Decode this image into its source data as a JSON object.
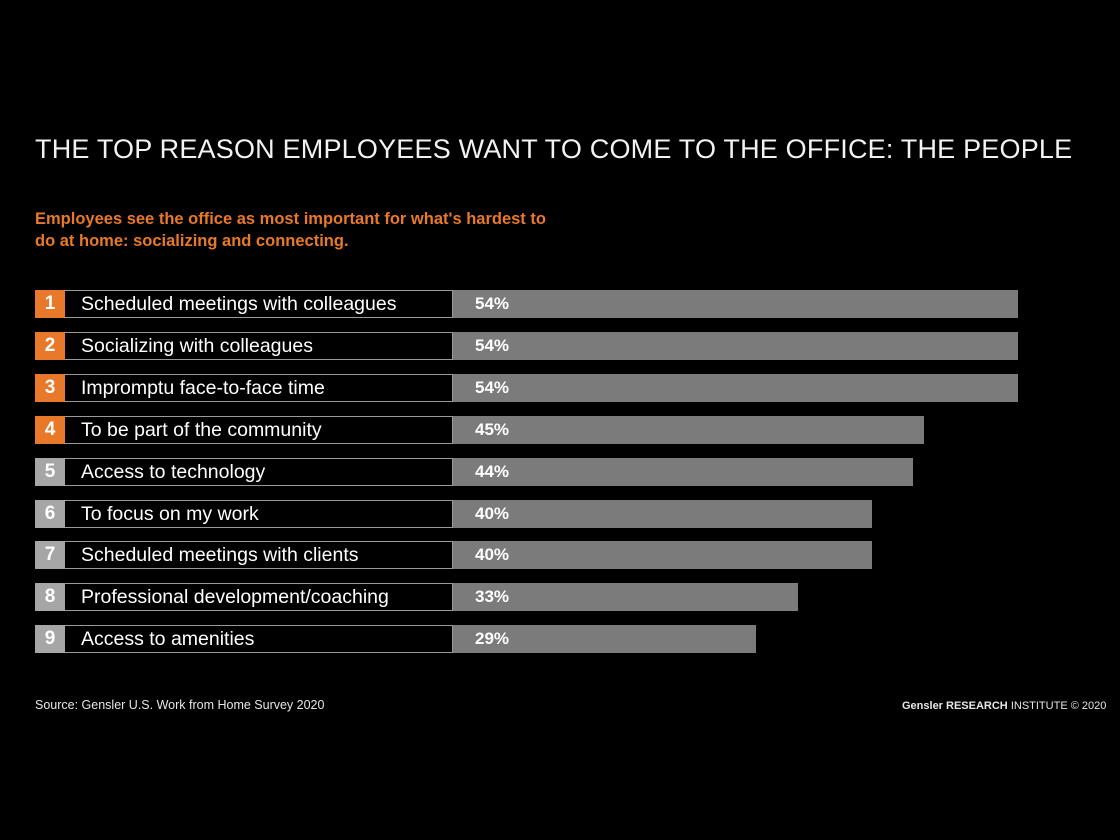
{
  "header": {
    "title": "THE TOP REASON EMPLOYEES WANT TO COME TO THE OFFICE: THE PEOPLE",
    "subtitle": "Employees see the office as most important for what's hardest to do at home: socializing and connecting."
  },
  "colors": {
    "background": "#000000",
    "accent_orange": "#e8792a",
    "rank_gray": "#a6a6a6",
    "bar": "#7b7b7b"
  },
  "chart_data": {
    "type": "bar",
    "orientation": "horizontal",
    "title": "THE TOP REASON EMPLOYEES WANT TO COME TO THE OFFICE: THE PEOPLE",
    "categories": [
      "Scheduled meetings with colleagues",
      "Socializing with colleagues",
      "Impromptu face-to-face time",
      "To be part of the community",
      "Access to technology",
      "To focus on my work",
      "Scheduled meetings with clients",
      "Professional development/coaching",
      "Access to amenities"
    ],
    "ranks": [
      "1",
      "2",
      "3",
      "4",
      "5",
      "6",
      "7",
      "8",
      "9"
    ],
    "values": [
      54,
      54,
      54,
      45,
      44,
      40,
      40,
      33,
      29
    ],
    "value_labels": [
      "54%",
      "54%",
      "54%",
      "45%",
      "44%",
      "40%",
      "40%",
      "33%",
      "29%"
    ],
    "highlighted_ranks": [
      1,
      2,
      3,
      4
    ],
    "unit": "%",
    "xlim": [
      0,
      54
    ],
    "grid": false
  },
  "footer": {
    "source": "Source: Gensler U.S. Work from Home Survey 2020",
    "credit_brand": "Gensler RESEARCH",
    "credit_rest": " INSTITUTE © 2020"
  }
}
